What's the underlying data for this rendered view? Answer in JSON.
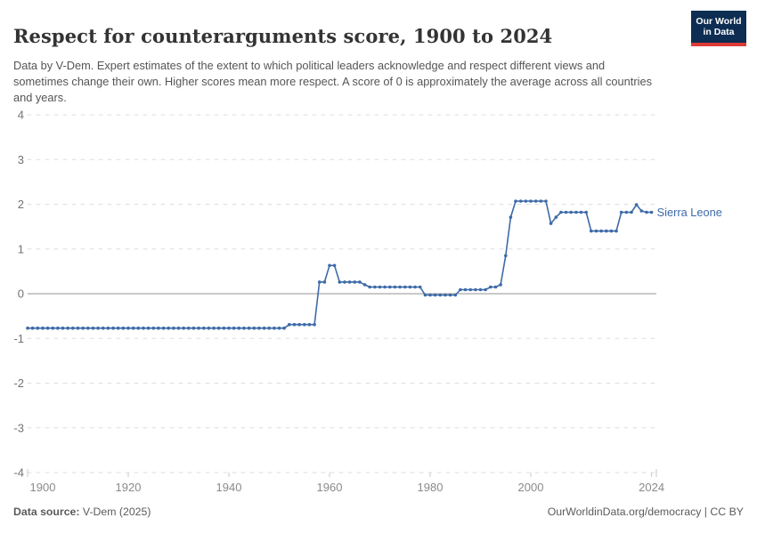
{
  "header": {
    "title": "Respect for counterarguments score, 1900 to 2024",
    "subtitle": "Data by V-Dem. Expert estimates of the extent to which political leaders acknowledge and respect different views and sometimes change their own. Higher scores mean more respect. A score of 0 is approximately the average across all countries and years."
  },
  "logo": {
    "line1": "Our World",
    "line2": "in Data",
    "bg_color": "#0d2e52",
    "bar_color": "#dc3a34"
  },
  "footer": {
    "data_source_label": "Data source:",
    "data_source_value": " V-Dem (2025)",
    "credit_link": "OurWorldinData.org/democracy",
    "credit_license": " | CC BY"
  },
  "chart_data": {
    "type": "line",
    "title": "Respect for counterarguments score, 1900 to 2024",
    "entity": "Sierra Leone",
    "line_color": "#3d6aa8",
    "grid": "dashed horizontal gridlines, solid zero line",
    "legend_position": "right of line end (entity label)",
    "xlim": [
      1900,
      2024
    ],
    "ylim": [
      -4,
      4
    ],
    "x_ticks": [
      1900,
      1920,
      1940,
      1960,
      1980,
      2000,
      2024
    ],
    "y_ticks": [
      4,
      3,
      2,
      1,
      0,
      -1,
      -2,
      -3,
      -4
    ],
    "start_year": 1900,
    "series": [
      {
        "name": "Sierra Leone",
        "values": [
          -0.77,
          -0.77,
          -0.77,
          -0.77,
          -0.77,
          -0.77,
          -0.77,
          -0.77,
          -0.77,
          -0.77,
          -0.77,
          -0.77,
          -0.77,
          -0.77,
          -0.77,
          -0.77,
          -0.77,
          -0.77,
          -0.77,
          -0.77,
          -0.77,
          -0.77,
          -0.77,
          -0.77,
          -0.77,
          -0.77,
          -0.77,
          -0.77,
          -0.77,
          -0.77,
          -0.77,
          -0.77,
          -0.77,
          -0.77,
          -0.77,
          -0.77,
          -0.77,
          -0.77,
          -0.77,
          -0.77,
          -0.77,
          -0.77,
          -0.77,
          -0.77,
          -0.77,
          -0.77,
          -0.77,
          -0.77,
          -0.77,
          -0.77,
          -0.77,
          -0.77,
          -0.69,
          -0.69,
          -0.69,
          -0.69,
          -0.69,
          -0.69,
          0.26,
          0.26,
          0.63,
          0.63,
          0.26,
          0.26,
          0.26,
          0.26,
          0.26,
          0.2,
          0.15,
          0.15,
          0.15,
          0.15,
          0.15,
          0.15,
          0.15,
          0.15,
          0.15,
          0.15,
          0.15,
          -0.03,
          -0.03,
          -0.03,
          -0.03,
          -0.03,
          -0.03,
          -0.03,
          0.09,
          0.09,
          0.09,
          0.09,
          0.09,
          0.09,
          0.15,
          0.15,
          0.2,
          0.85,
          1.71,
          2.07,
          2.07,
          2.07,
          2.07,
          2.07,
          2.07,
          2.07,
          1.57,
          1.71,
          1.82,
          1.82,
          1.82,
          1.82,
          1.82,
          1.82,
          1.4,
          1.4,
          1.4,
          1.4,
          1.4,
          1.4,
          1.82,
          1.82,
          1.82,
          1.99,
          1.85,
          1.82,
          1.82
        ]
      }
    ]
  }
}
